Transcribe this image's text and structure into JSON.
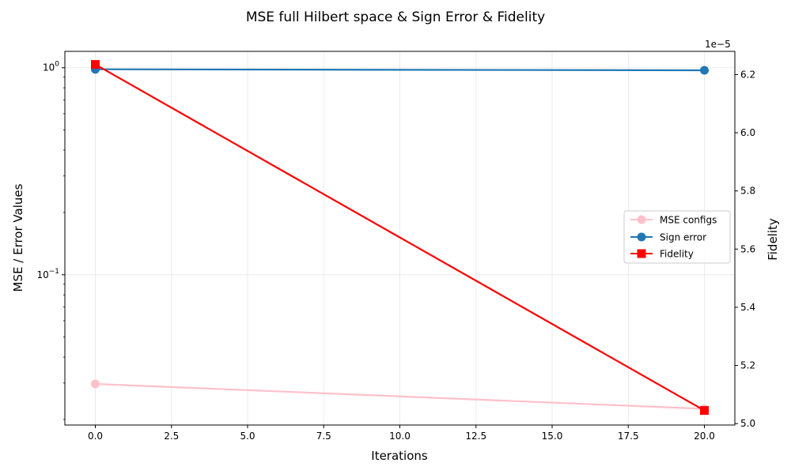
{
  "chart_data": {
    "type": "line",
    "title": "MSE full Hilbert space & Sign Error & Fidelity",
    "xlabel": "Iterations",
    "ylabel_left": "MSE / Error Values",
    "ylabel_right": "Fidelity",
    "x": [
      0,
      20
    ],
    "xlim": [
      -1,
      21
    ],
    "x_ticks": [
      0.0,
      2.5,
      5.0,
      7.5,
      10.0,
      12.5,
      15.0,
      17.5,
      20.0
    ],
    "x_tick_labels": [
      "0.0",
      "2.5",
      "5.0",
      "7.5",
      "10.0",
      "12.5",
      "15.0",
      "17.5",
      "20.0"
    ],
    "y_left_scale": "log",
    "y_left_lim": [
      0.0188,
      1.2
    ],
    "y_left_major_ticks": [
      0.1,
      1
    ],
    "y_left_major_labels": [
      "10",
      "10"
    ],
    "y_left_major_exponents": [
      "−1",
      "0"
    ],
    "y_left_minor_ticks": [
      0.02,
      0.03,
      0.04,
      0.05,
      0.06,
      0.07,
      0.08,
      0.09,
      0.2,
      0.3,
      0.4,
      0.5,
      0.6,
      0.7,
      0.8,
      0.9
    ],
    "y_right_lim": [
      4.995e-05,
      6.28e-05
    ],
    "y_right_ticks": [
      5e-05,
      5.2e-05,
      5.4e-05,
      5.6e-05,
      5.8e-05,
      6e-05,
      6.2e-05
    ],
    "y_right_tick_labels": [
      "5.0",
      "5.2",
      "5.4",
      "5.6",
      "5.8",
      "6.0",
      "6.2"
    ],
    "y_right_offset_label": "1e−5",
    "grid": true,
    "legend_position": "center-right",
    "series": [
      {
        "name": "MSE configs",
        "axis": "left",
        "color": "#ffc0cb",
        "marker": "circle",
        "values": [
          0.0297,
          0.0225
        ]
      },
      {
        "name": "Sign error",
        "axis": "left",
        "color": "#1f77b4",
        "marker": "circle",
        "values": [
          0.983,
          0.972
        ]
      },
      {
        "name": "Fidelity",
        "axis": "right",
        "color": "#ff0000",
        "marker": "square",
        "values": [
          6.235e-05,
          5.045e-05
        ]
      }
    ]
  }
}
